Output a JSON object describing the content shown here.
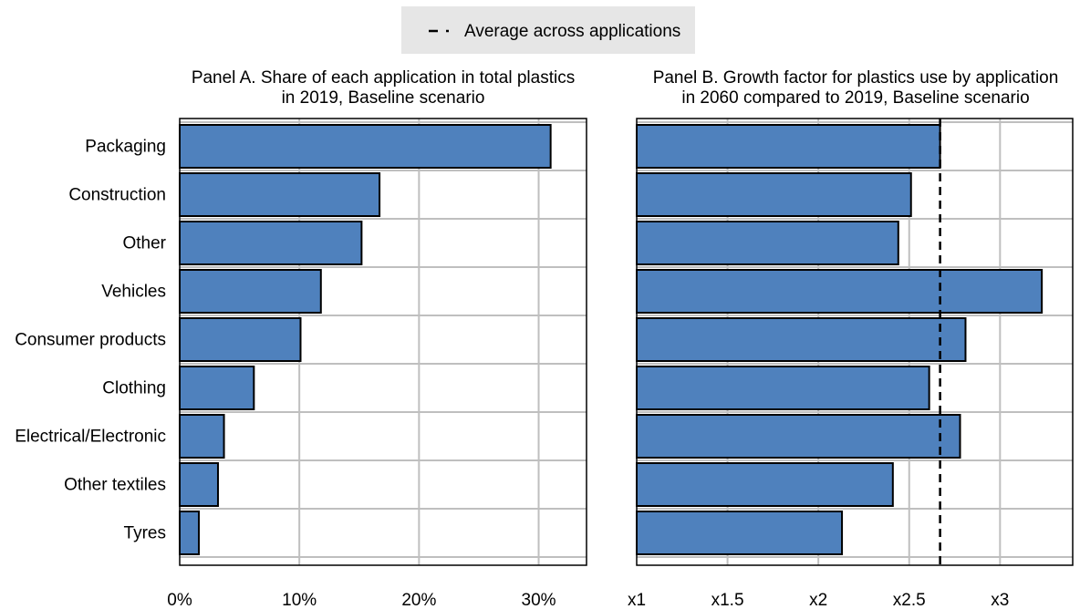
{
  "legend": {
    "label": "Average across applications"
  },
  "categories": [
    "Packaging",
    "Construction",
    "Other",
    "Vehicles",
    "Consumer products",
    "Clothing",
    "Electrical/Electronic",
    "Other textiles",
    "Tyres"
  ],
  "colors": {
    "bar": "#4f81bd",
    "bar_border": "#000000",
    "grid": "#bfbfbf",
    "legend_bg": "#e6e6e6"
  },
  "chart_data": [
    {
      "type": "bar",
      "orientation": "horizontal",
      "title": "Panel A. Share of each application in total plastics in 2019, Baseline scenario",
      "title_lines": [
        "Panel A. Share of each application in total plastics",
        "in 2019, Baseline scenario"
      ],
      "categories": [
        "Packaging",
        "Construction",
        "Other",
        "Vehicles",
        "Consumer products",
        "Clothing",
        "Electrical/Electronic",
        "Other textiles",
        "Tyres"
      ],
      "values": [
        31.0,
        16.7,
        15.2,
        11.8,
        10.1,
        6.2,
        3.7,
        3.2,
        1.6
      ],
      "xlim": [
        0,
        34
      ],
      "ticks": [
        0,
        10,
        20,
        30
      ],
      "tick_labels": [
        "0%",
        "10%",
        "20%",
        "30%"
      ],
      "grid": true
    },
    {
      "type": "bar",
      "orientation": "horizontal",
      "title": "Panel B. Growth factor for plastics use by application in 2060 compared to 2019, Baseline scenario",
      "title_lines": [
        "Panel B. Growth factor for plastics use by application",
        "in 2060 compared to 2019, Baseline scenario"
      ],
      "categories": [
        "Packaging",
        "Construction",
        "Other",
        "Vehicles",
        "Consumer products",
        "Clothing",
        "Electrical/Electronic",
        "Other textiles",
        "Tyres"
      ],
      "values": [
        2.67,
        2.51,
        2.44,
        3.23,
        2.81,
        2.61,
        2.78,
        2.41,
        2.13
      ],
      "average": 2.67,
      "xlim": [
        1,
        3.4
      ],
      "ticks": [
        1,
        1.5,
        2,
        2.5,
        3
      ],
      "tick_labels": [
        "x1",
        "x1.5",
        "x2",
        "x2.5",
        "x3"
      ],
      "grid": true
    }
  ]
}
